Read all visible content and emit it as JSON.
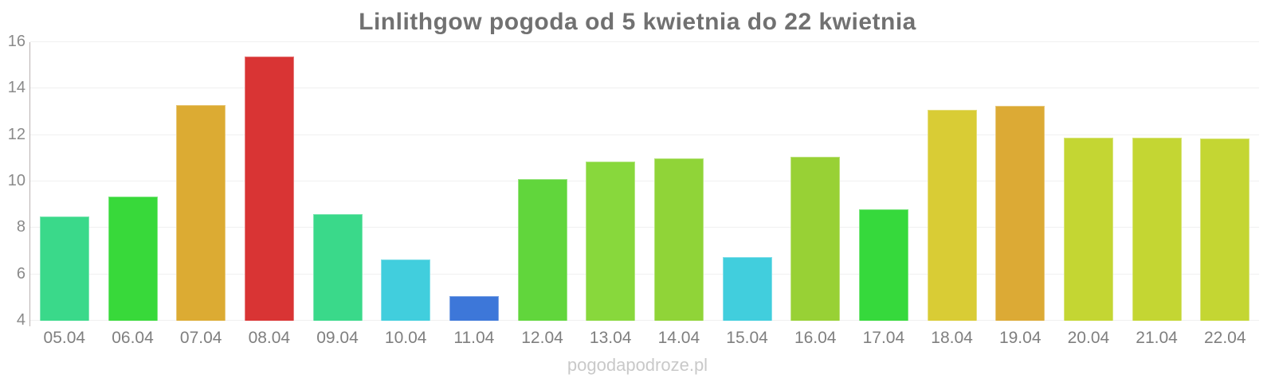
{
  "title": "Linlithgow pogoda od 5 kwietnia do 22 kwietnia",
  "watermark": "pogodapodroze.pl",
  "colors": {
    "background": "#ffffff",
    "title_text": "#717171",
    "axis_line": "#b9b2b2",
    "gridline": "#f0f0f0",
    "tick_label": "#8a8a8a",
    "watermark_text": "#c9c9c9"
  },
  "chart_data": {
    "type": "bar",
    "title": "Linlithgow pogoda od 5 kwietnia do 22 kwietnia",
    "xlabel": "",
    "ylabel": "",
    "ylim": [
      4,
      16
    ],
    "yticks": [
      4,
      6,
      8,
      10,
      12,
      14,
      16
    ],
    "grid": true,
    "legend": false,
    "categories": [
      "05.04",
      "06.04",
      "07.04",
      "08.04",
      "09.04",
      "10.04",
      "11.04",
      "12.04",
      "13.04",
      "14.04",
      "15.04",
      "16.04",
      "17.04",
      "18.04",
      "19.04",
      "20.04",
      "21.04",
      "22.04"
    ],
    "values": [
      8.5,
      9.35,
      13.3,
      15.4,
      8.6,
      6.65,
      5.05,
      10.1,
      10.85,
      11.0,
      6.75,
      11.05,
      8.8,
      13.1,
      13.25,
      11.9,
      11.9,
      11.85
    ],
    "bar_colors": [
      "#3ad98a",
      "#38d93a",
      "#dcab33",
      "#d93434",
      "#3ad98a",
      "#41cedd",
      "#3d77d9",
      "#61d63c",
      "#88d83c",
      "#90d438",
      "#41cedd",
      "#98d135",
      "#36d93c",
      "#d9cc35",
      "#dcaa35",
      "#c4d633",
      "#c4d633",
      "#c4d633"
    ]
  }
}
